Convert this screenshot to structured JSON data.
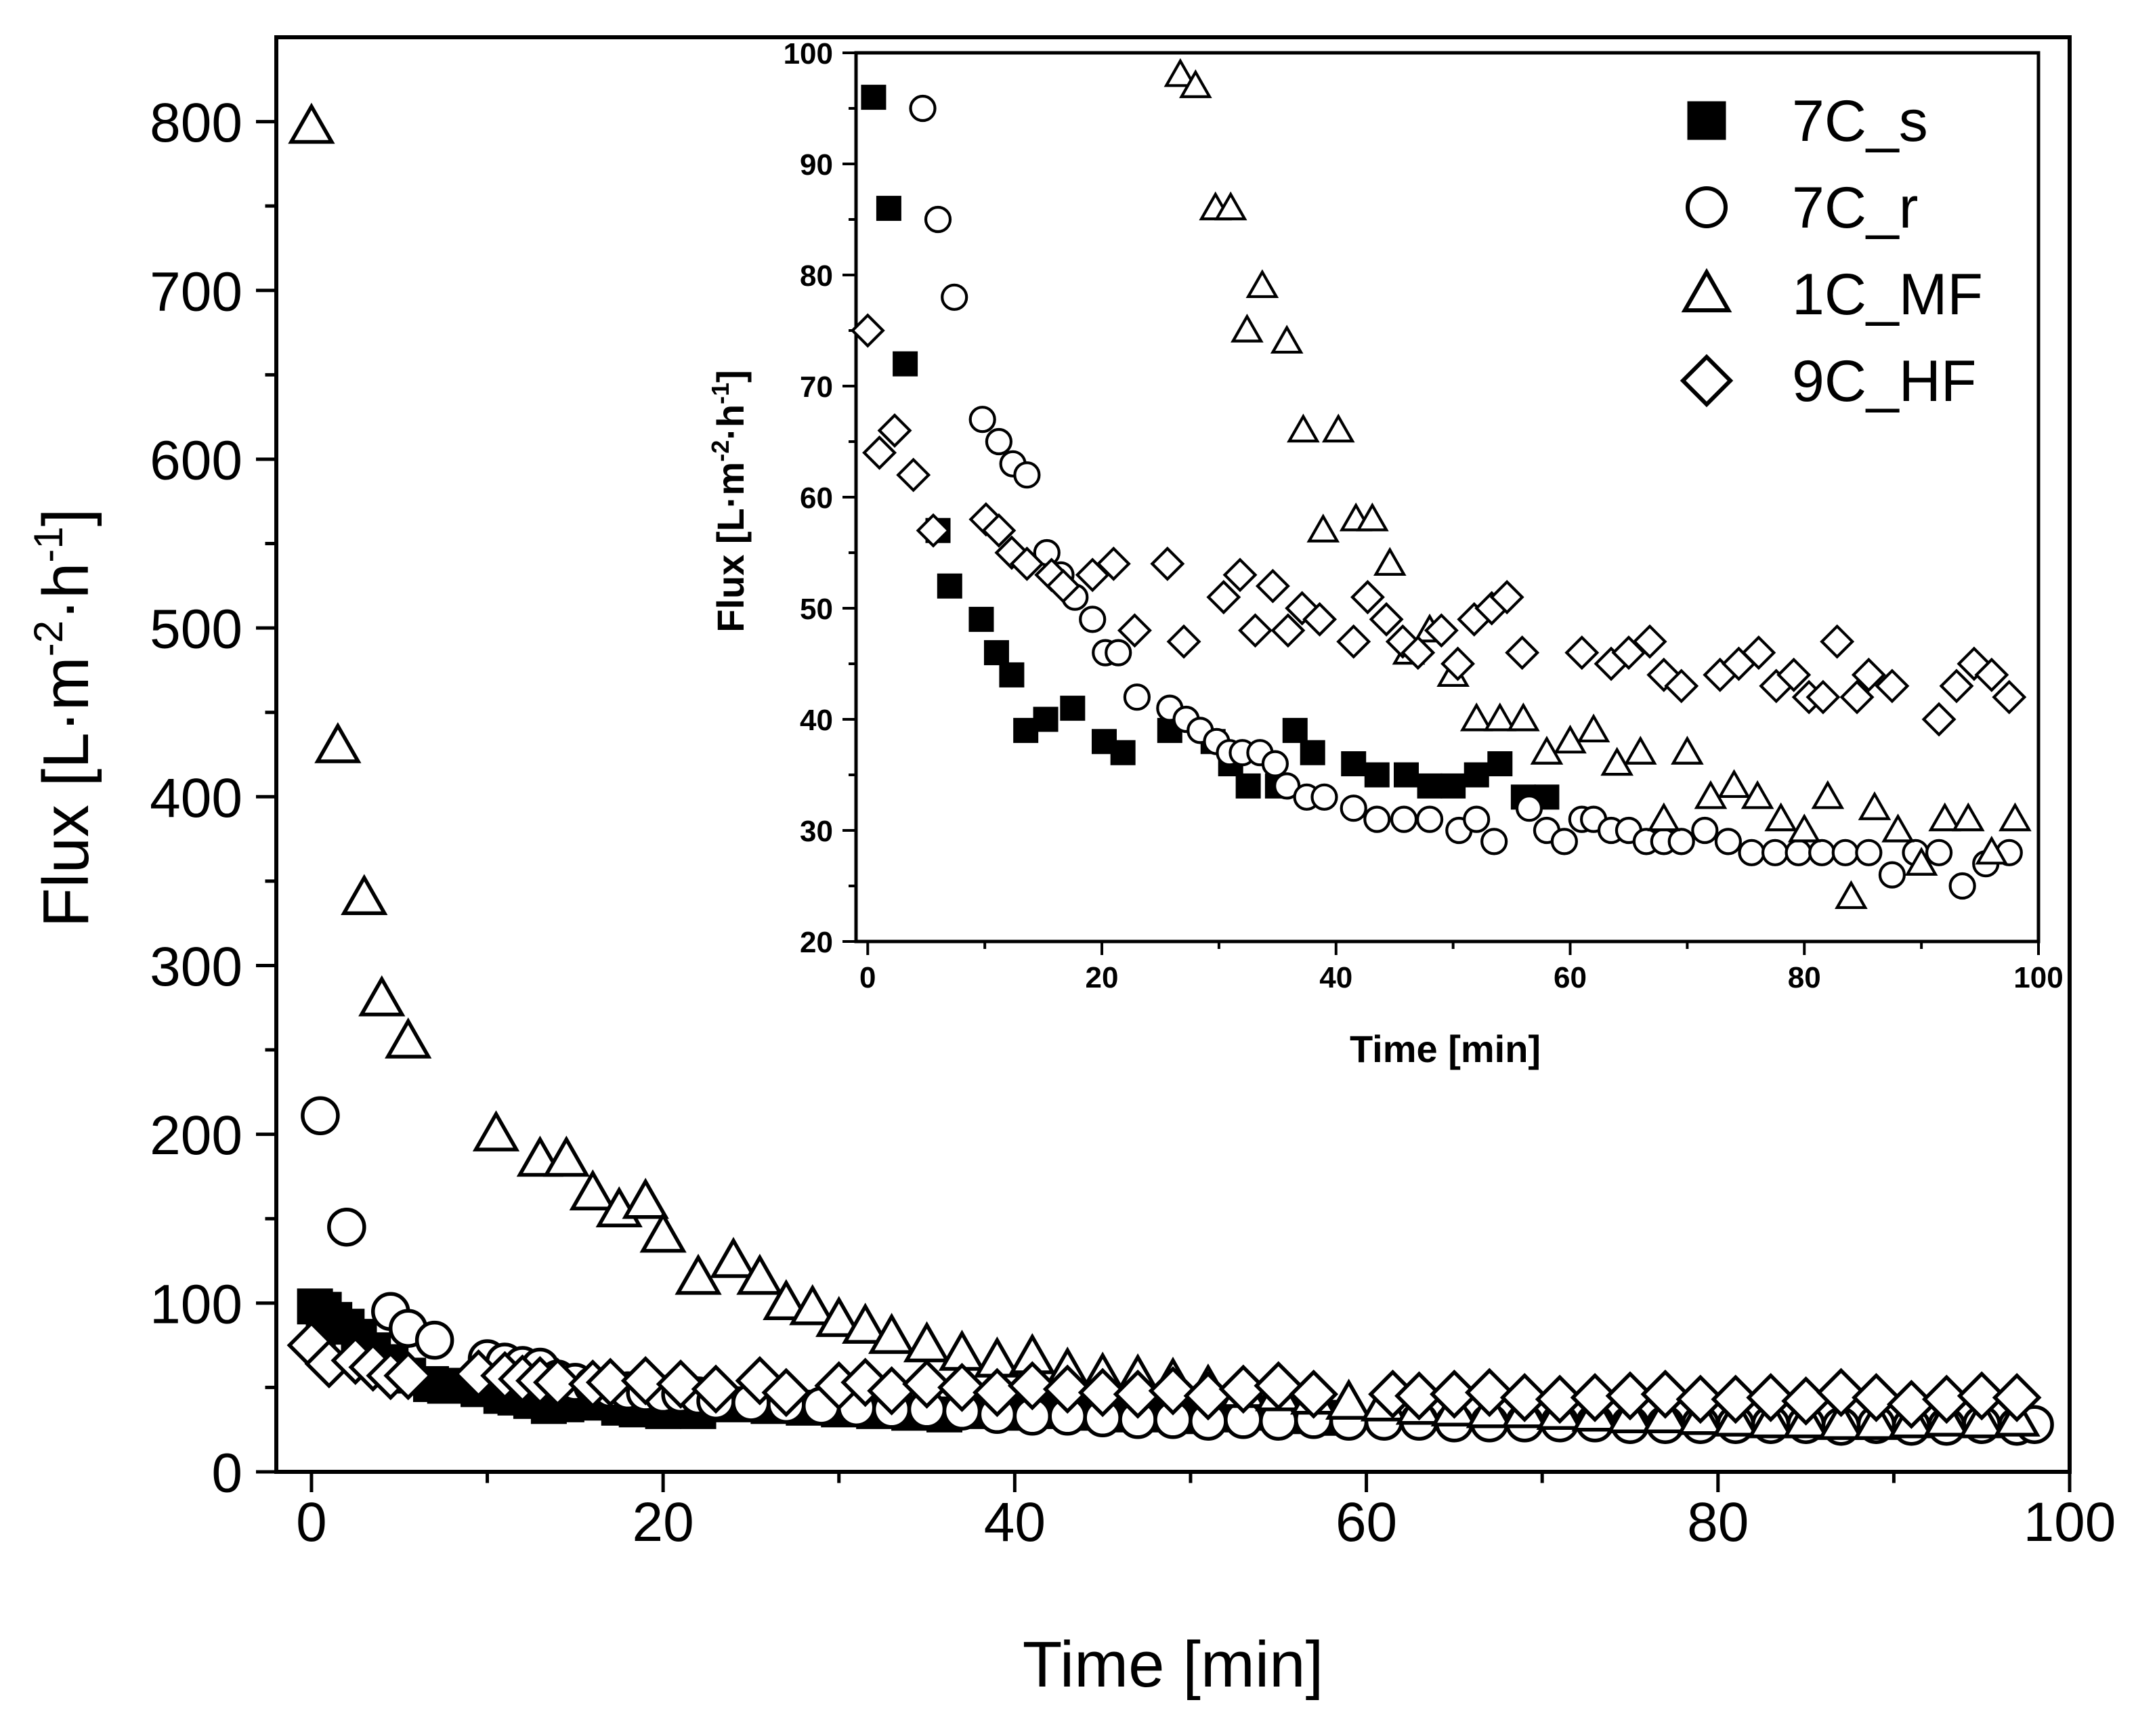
{
  "chart_data": [
    {
      "id": "main",
      "type": "scatter",
      "xlabel": "Time [min]",
      "ylabel": {
        "base": "Flux [L·m",
        "sup1": "-2",
        "mid": "·h",
        "sup2": "-1",
        "end": "]"
      },
      "xlim": [
        -2,
        100
      ],
      "ylim": [
        0,
        850
      ],
      "xticks": [
        "0",
        "20",
        "40",
        "60",
        "80",
        "100"
      ],
      "xtick_values": [
        0,
        20,
        40,
        60,
        80,
        100
      ],
      "yticks": [
        "0",
        "100",
        "200",
        "300",
        "400",
        "500",
        "600",
        "700",
        "800"
      ],
      "ytick_values": [
        0,
        100,
        200,
        300,
        400,
        500,
        600,
        700,
        800
      ],
      "series": [
        {
          "name": "7C_s",
          "marker": "square-filled",
          "x": [
            0.2,
            0.7,
            1.3,
            2,
            2.7,
            3.5,
            4.5,
            5.5,
            6.8,
            7.6,
            9.5,
            10.8,
            11.6,
            12.5,
            13.5,
            14.5,
            15.5,
            17.5,
            18.5,
            20,
            21,
            22,
            24,
            26,
            28,
            30,
            32,
            34,
            36,
            38,
            40,
            42,
            44,
            46,
            48,
            50,
            52,
            54,
            56,
            58
          ],
          "y": [
            98,
            96,
            90,
            86,
            80,
            72,
            65,
            57,
            52,
            51,
            49,
            45,
            44,
            42,
            39,
            40,
            41,
            38,
            37,
            36,
            37,
            36,
            40,
            39,
            38,
            37,
            36,
            35,
            34,
            36,
            35,
            36,
            35,
            34,
            34,
            33,
            34,
            35,
            33,
            32
          ]
        },
        {
          "name": "7C_r",
          "marker": "circle-open",
          "x": [
            0.5,
            2,
            4.5,
            5.5,
            7,
            10,
            11,
            12,
            13,
            14,
            15,
            16,
            17,
            18,
            19,
            20,
            21,
            22,
            23,
            25,
            27,
            29,
            31,
            33,
            35,
            37,
            39,
            41,
            43,
            45,
            47,
            49,
            51,
            53,
            55,
            57,
            59,
            61,
            63,
            65,
            67,
            69,
            71,
            73,
            75,
            77,
            79,
            81,
            83,
            85,
            87,
            89,
            91,
            93,
            95,
            97,
            98
          ],
          "y": [
            211,
            145,
            95,
            85,
            78,
            67,
            65,
            63,
            62,
            55,
            53,
            51,
            49,
            48,
            47,
            46,
            46,
            45,
            42,
            41,
            40,
            39,
            38,
            37,
            37,
            36,
            34,
            33,
            33,
            32,
            31,
            31,
            30,
            31,
            30,
            31,
            30,
            30,
            30,
            29,
            29,
            29,
            29,
            29,
            28,
            28,
            28,
            28,
            28,
            28,
            27,
            28,
            27,
            27,
            28,
            27,
            28
          ]
        },
        {
          "name": "1C_MF",
          "marker": "triangle-open",
          "x": [
            0,
            1.5,
            3,
            4,
            5.5,
            10.5,
            13,
            14.5,
            16,
            17.5,
            19,
            20,
            22,
            24,
            25.5,
            27,
            28.5,
            30,
            31.5,
            33,
            35,
            37,
            39,
            41,
            43,
            45,
            47,
            49,
            51,
            53,
            55,
            57,
            59,
            61,
            63,
            65,
            67,
            69,
            71,
            73,
            75,
            77,
            79,
            81,
            83,
            85,
            87,
            89,
            91,
            93,
            95,
            97
          ],
          "y": [
            797,
            430,
            340,
            280,
            255,
            200,
            185,
            185,
            165,
            155,
            160,
            140,
            115,
            125,
            115,
            100,
            97,
            90,
            86,
            80,
            75,
            70,
            66,
            68,
            60,
            57,
            56,
            54,
            50,
            48,
            46,
            44,
            41,
            40,
            38,
            37,
            36,
            36,
            35,
            34,
            33,
            33,
            32,
            31,
            30,
            30,
            29,
            29,
            30,
            31,
            30,
            31
          ]
        },
        {
          "name": "9C_HF",
          "marker": "diamond-open",
          "x": [
            0,
            1,
            2.5,
            3.5,
            4.5,
            5.5,
            9.5,
            11,
            12,
            13,
            14,
            16,
            17,
            19,
            21,
            23,
            25.5,
            27,
            30,
            31.5,
            33,
            35,
            37,
            39,
            41,
            43,
            45,
            47,
            49,
            51,
            53,
            55,
            57,
            61.5,
            63,
            65,
            67,
            69,
            71,
            73,
            75,
            77,
            79,
            81,
            83,
            85,
            87,
            89,
            91,
            93,
            95,
            97
          ],
          "y": [
            75,
            64,
            66,
            62,
            57,
            57,
            58,
            57,
            55,
            54,
            53,
            52,
            53,
            54,
            52,
            49,
            54,
            47,
            51,
            53,
            48,
            52,
            50,
            47,
            51,
            49,
            47,
            46,
            48,
            45,
            49,
            51,
            46,
            46,
            45,
            46,
            47,
            44,
            43,
            44,
            45,
            46,
            43,
            43,
            44,
            42,
            47,
            44,
            40,
            43,
            45,
            44
          ]
        }
      ]
    },
    {
      "id": "inset",
      "type": "scatter",
      "xlabel": "Time [min]",
      "ylabel": {
        "base": "Flux [L·m",
        "sup1": "-2",
        "mid": "·h",
        "sup2": "-1",
        "end": "]"
      },
      "xlim": [
        -1,
        100
      ],
      "ylim": [
        20,
        100
      ],
      "xticks": [
        "0",
        "20",
        "40",
        "60",
        "80",
        "100"
      ],
      "xtick_values": [
        0,
        20,
        40,
        60,
        80,
        100
      ],
      "yticks": [
        "20",
        "30",
        "40",
        "50",
        "60",
        "70",
        "80",
        "90",
        "100"
      ],
      "ytick_values": [
        20,
        30,
        40,
        50,
        60,
        70,
        80,
        90,
        100
      ],
      "legend": {
        "position": "top-right",
        "entries": [
          "7C_s",
          "7C_r",
          "1C_MF",
          "9C_HF"
        ]
      },
      "series": [
        {
          "name": "7C_s",
          "marker": "square-filled",
          "x": [
            0.5,
            1.8,
            3.2,
            6,
            7,
            9.7,
            11,
            12.3,
            13.5,
            15.2,
            17.5,
            20.2,
            21.8,
            25.8,
            29.5,
            31,
            32.5,
            35,
            36.5,
            38,
            41.5,
            43.5,
            46,
            48,
            50,
            52,
            54,
            56,
            58
          ],
          "y": [
            96,
            86,
            72,
            57,
            52,
            49,
            46,
            44,
            39,
            40,
            41,
            38,
            37,
            39,
            38,
            36,
            34,
            34,
            39,
            37,
            36,
            35,
            35,
            34,
            34,
            35,
            36,
            33,
            33
          ]
        },
        {
          "name": "7C_r",
          "marker": "circle-open",
          "x": [
            4.7,
            6,
            7.4,
            9.8,
            11.2,
            12.4,
            13.6,
            15.3,
            16.5,
            17.7,
            19.2,
            20.3,
            21.4,
            23,
            25.8,
            27.2,
            28.4,
            29.8,
            30.9,
            32,
            33.5,
            34.8,
            35.8,
            37.5,
            39,
            41.5,
            43.5,
            45.8,
            48,
            50.5,
            52,
            53.5,
            56.5,
            58,
            59.5,
            61,
            62,
            63.5,
            65,
            66.5,
            68,
            69.5,
            71.5,
            73.5,
            75.5,
            77.5,
            79.5,
            81.5,
            83.5,
            85.5,
            87.5,
            89.5,
            91.5,
            93.5,
            95.5,
            97.5
          ],
          "y": [
            95,
            85,
            78,
            67,
            65,
            63,
            62,
            55,
            53,
            51,
            49,
            46,
            46,
            42,
            41,
            40,
            39,
            38,
            37,
            37,
            37,
            36,
            34,
            33,
            33,
            32,
            31,
            31,
            31,
            30,
            31,
            29,
            32,
            30,
            29,
            31,
            31,
            30,
            30,
            29,
            29,
            29,
            30,
            29,
            28,
            28,
            28,
            28,
            28,
            28,
            26,
            28,
            28,
            25,
            27,
            28
          ]
        },
        {
          "name": "1C_MF",
          "marker": "triangle-open",
          "x": [
            26.7,
            28,
            29.7,
            31,
            32.4,
            33.7,
            35.8,
            37.2,
            38.9,
            40.2,
            41.7,
            43.1,
            44.6,
            46.2,
            48,
            50,
            52,
            54,
            56,
            58,
            60,
            62,
            64,
            66,
            68,
            70,
            72,
            74,
            76,
            78,
            80,
            82,
            84,
            86,
            88,
            90,
            92,
            94,
            96,
            98
          ],
          "y": [
            98,
            97,
            86,
            86,
            75,
            79,
            74,
            66,
            57,
            66,
            58,
            58,
            54,
            46,
            48,
            44,
            40,
            40,
            40,
            37,
            38,
            39,
            36,
            37,
            31,
            37,
            33,
            34,
            33,
            31,
            30,
            33,
            24,
            32,
            30,
            27,
            31,
            31,
            28,
            31
          ]
        },
        {
          "name": "9C_HF",
          "marker": "diamond-open",
          "x": [
            0,
            1,
            2.3,
            3.9,
            5.6,
            10.1,
            11.2,
            12.3,
            13.6,
            15.7,
            16.7,
            19.2,
            21,
            22.8,
            25.6,
            27,
            30.4,
            31.8,
            33.1,
            34.6,
            35.9,
            37.1,
            38.6,
            41.5,
            42.7,
            44.3,
            45.7,
            47,
            49,
            50.4,
            51.8,
            53.3,
            54.6,
            55.9,
            61,
            63.5,
            65,
            66.8,
            68,
            69.5,
            72.8,
            74.4,
            76.1,
            77.6,
            79.1,
            80.4,
            81.6,
            82.8,
            84.5,
            85.5,
            87.5,
            91.5,
            93,
            94.5,
            96,
            97.5
          ],
          "y": [
            75,
            64,
            66,
            62,
            57,
            58,
            57,
            55,
            54,
            53,
            52,
            53,
            54,
            48,
            54,
            47,
            51,
            53,
            48,
            52,
            48,
            50,
            49,
            47,
            51,
            49,
            47,
            46,
            48,
            45,
            49,
            50,
            51,
            46,
            46,
            45,
            46,
            47,
            44,
            43,
            44,
            45,
            46,
            43,
            44,
            42,
            42,
            47,
            42,
            44,
            43,
            40,
            43,
            45,
            44,
            42
          ]
        }
      ]
    }
  ]
}
